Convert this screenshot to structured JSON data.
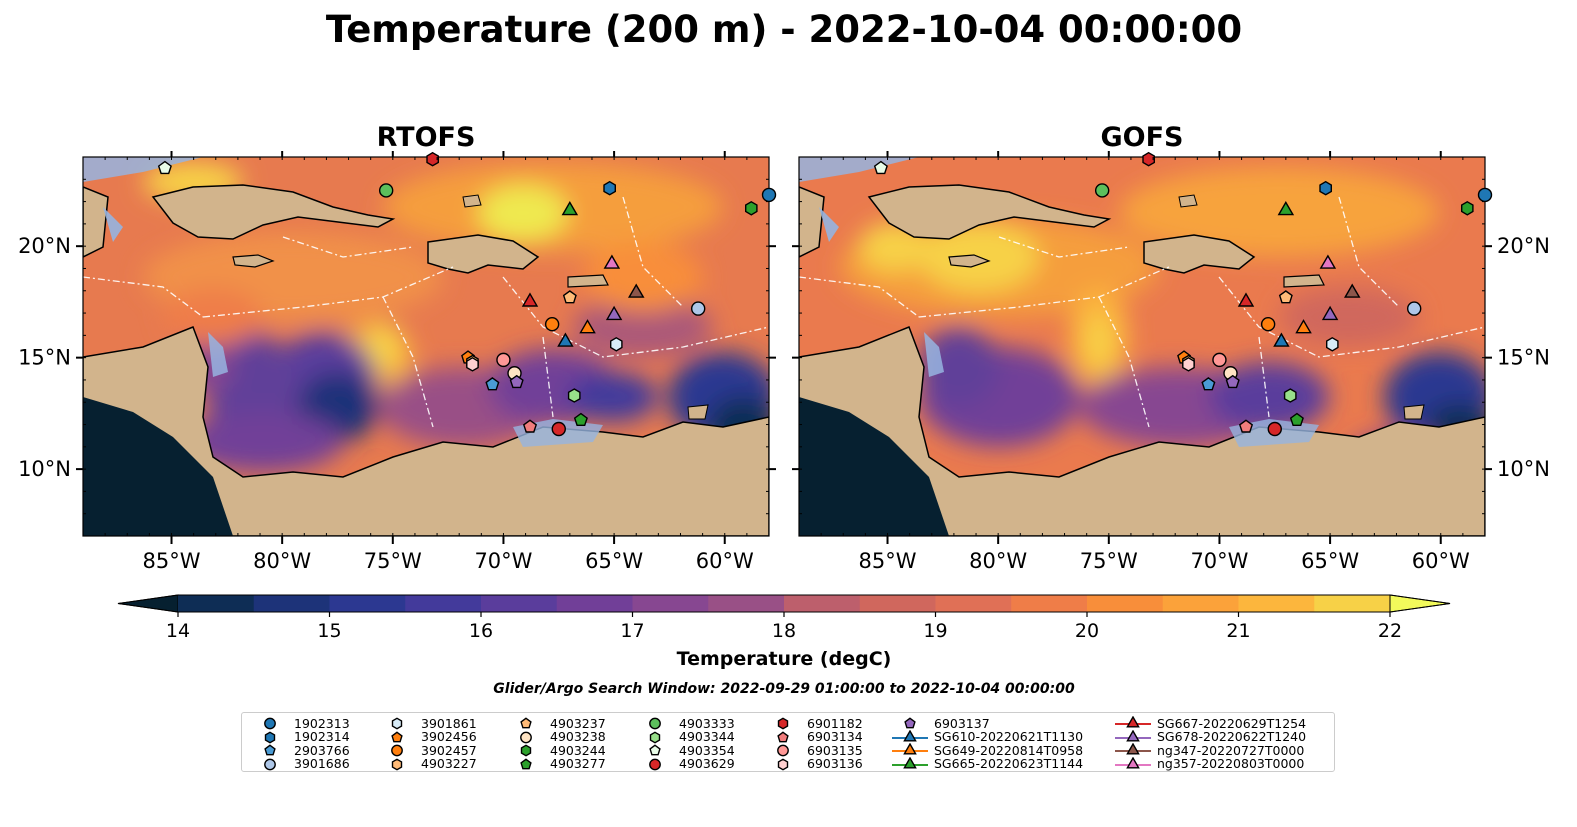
{
  "title": "Temperature (200 m) - 2022-10-04 00:00:00",
  "chart_data": {
    "type": "heatmap",
    "panels": [
      {
        "title": "RTOFS"
      },
      {
        "title": "GOFS"
      }
    ],
    "xlim": [
      -89,
      -58
    ],
    "ylim": [
      7,
      24
    ],
    "x_ticks": [
      -85,
      -80,
      -75,
      -70,
      -65,
      -60
    ],
    "x_tick_labels": [
      "85°W",
      "80°W",
      "75°W",
      "70°W",
      "65°W",
      "60°W"
    ],
    "y_ticks": [
      10,
      15,
      20
    ],
    "y_tick_labels": [
      "10°N",
      "15°N",
      "20°N"
    ],
    "colorbar": {
      "label": "Temperature (degC)",
      "vmin": 14,
      "vmax": 22,
      "step": 0.5,
      "ticks": [
        14,
        15,
        16,
        17,
        18,
        19,
        20,
        21,
        22
      ],
      "extend": "both",
      "colors": [
        "#062030",
        "#0e2d55",
        "#1d3379",
        "#2c3891",
        "#433a9b",
        "#5a3d9c",
        "#713f98",
        "#874791",
        "#995086",
        "#aa5979",
        "#bd5f6c",
        "#d0675d",
        "#e07056",
        "#ef7d48",
        "#f88e3a",
        "#fba23a",
        "#fcb63d",
        "#f7d147",
        "#efe950",
        "#f2fa5b"
      ]
    },
    "land_color": "#d2b48c",
    "shelf_color": "#96b4e0",
    "search_window": "Glider/Argo Search Window: 2022-09-29 01:00:00 to 2022-10-04 00:00:00",
    "observations": [
      {
        "name": "1902313",
        "marker": "circle",
        "color": "#1f77b4",
        "lon": -58.0,
        "lat": 22.3
      },
      {
        "name": "1902314",
        "marker": "hexagon",
        "color": "#1f77b4",
        "lon": -65.2,
        "lat": 22.6
      },
      {
        "name": "2903766",
        "marker": "pentagon",
        "color": "#4a9bd4",
        "lon": -70.5,
        "lat": 13.8
      },
      {
        "name": "3901686",
        "marker": "circle",
        "color": "#aec7e8",
        "lon": -61.2,
        "lat": 17.2
      },
      {
        "name": "3901861",
        "marker": "hexagon",
        "color": "#d8ecf8",
        "lon": -64.9,
        "lat": 15.6
      },
      {
        "name": "3902456",
        "marker": "pentagon",
        "color": "#ff7f0e",
        "lon": -71.6,
        "lat": 15.0
      },
      {
        "name": "3902457",
        "marker": "circle",
        "color": "#ff7f0e",
        "lon": -67.8,
        "lat": 16.5
      },
      {
        "name": "4903227",
        "marker": "hexagon",
        "color": "#ffbb78",
        "lon": -71.4,
        "lat": 14.8
      },
      {
        "name": "4903237",
        "marker": "pentagon",
        "color": "#ffbb78",
        "lon": -67.0,
        "lat": 17.7
      },
      {
        "name": "4903238",
        "marker": "circle",
        "color": "#ffe4c4",
        "lon": -69.5,
        "lat": 14.3
      },
      {
        "name": "4903244",
        "marker": "hexagon",
        "color": "#2ca02c",
        "lon": -58.8,
        "lat": 21.7
      },
      {
        "name": "4903277",
        "marker": "pentagon",
        "color": "#2ca02c",
        "lon": -66.5,
        "lat": 12.2
      },
      {
        "name": "4903333",
        "marker": "circle",
        "color": "#5cbf5c",
        "lon": -75.3,
        "lat": 22.5
      },
      {
        "name": "4903344",
        "marker": "hexagon",
        "color": "#98df8a",
        "lon": -66.8,
        "lat": 13.3
      },
      {
        "name": "4903354",
        "marker": "pentagon",
        "color": "#e8fce8",
        "lon": -85.3,
        "lat": 23.5
      },
      {
        "name": "4903629",
        "marker": "circle",
        "color": "#d62728",
        "lon": -67.5,
        "lat": 11.8
      },
      {
        "name": "6901182",
        "marker": "hexagon",
        "color": "#d62728",
        "lon": -73.2,
        "lat": 23.9
      },
      {
        "name": "6903134",
        "marker": "pentagon",
        "color": "#f07c7c",
        "lon": -68.8,
        "lat": 11.9
      },
      {
        "name": "6903135",
        "marker": "circle",
        "color": "#ff9896",
        "lon": -70.0,
        "lat": 14.9
      },
      {
        "name": "6903136",
        "marker": "hexagon",
        "color": "#ffd0d0",
        "lon": -71.4,
        "lat": 14.7
      },
      {
        "name": "6903137",
        "marker": "pentagon",
        "color": "#9467bd",
        "lon": -69.4,
        "lat": 13.9
      },
      {
        "name": "SG610-20220621T1130",
        "marker": "triangle",
        "color": "#1f77b4",
        "lon": -67.2,
        "lat": 15.7
      },
      {
        "name": "SG649-20220814T0958",
        "marker": "triangle",
        "color": "#ff7f0e",
        "lon": -66.2,
        "lat": 16.3
      },
      {
        "name": "SG665-20220623T1144",
        "marker": "triangle",
        "color": "#2ca02c",
        "lon": -67.0,
        "lat": 21.6
      },
      {
        "name": "SG667-20220629T1254",
        "marker": "triangle",
        "color": "#d62728",
        "lon": -68.8,
        "lat": 17.5
      },
      {
        "name": "SG678-20220622T1240",
        "marker": "triangle",
        "color": "#9467bd",
        "lon": -65.0,
        "lat": 16.9
      },
      {
        "name": "ng347-20220727T0000",
        "marker": "triangle",
        "color": "#8c564b",
        "lon": -64.0,
        "lat": 17.9
      },
      {
        "name": "ng357-20220803T0000",
        "marker": "triangle",
        "color": "#e377c2",
        "lon": -65.1,
        "lat": 19.2
      }
    ]
  }
}
